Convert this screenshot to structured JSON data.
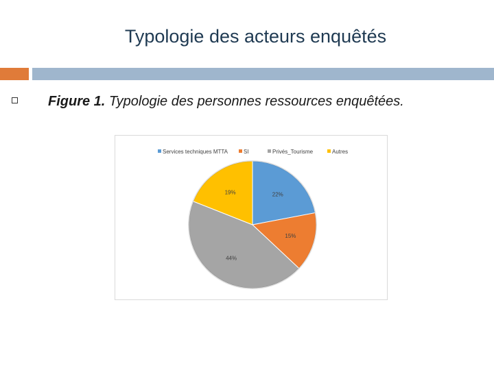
{
  "slide": {
    "title": "Typologie des acteurs enquêtés",
    "caption_prefix": "Figure 1.",
    "caption_text": " Typologie des personnes ressources enquêtées.",
    "accent_colors": {
      "left_bar": "#e07b39",
      "right_bar": "#9fb6cd"
    }
  },
  "chart_data": {
    "type": "pie",
    "title": "",
    "legend_position": "top",
    "categories": [
      "Services techniques MTTA",
      "SI",
      "Privés_Tourisme",
      "Autres"
    ],
    "values": [
      22,
      15,
      44,
      19
    ],
    "labels": [
      "22%",
      "15%",
      "44%",
      "19%"
    ],
    "colors": [
      "#5b9bd5",
      "#ed7d31",
      "#a5a5a5",
      "#ffc000"
    ]
  }
}
